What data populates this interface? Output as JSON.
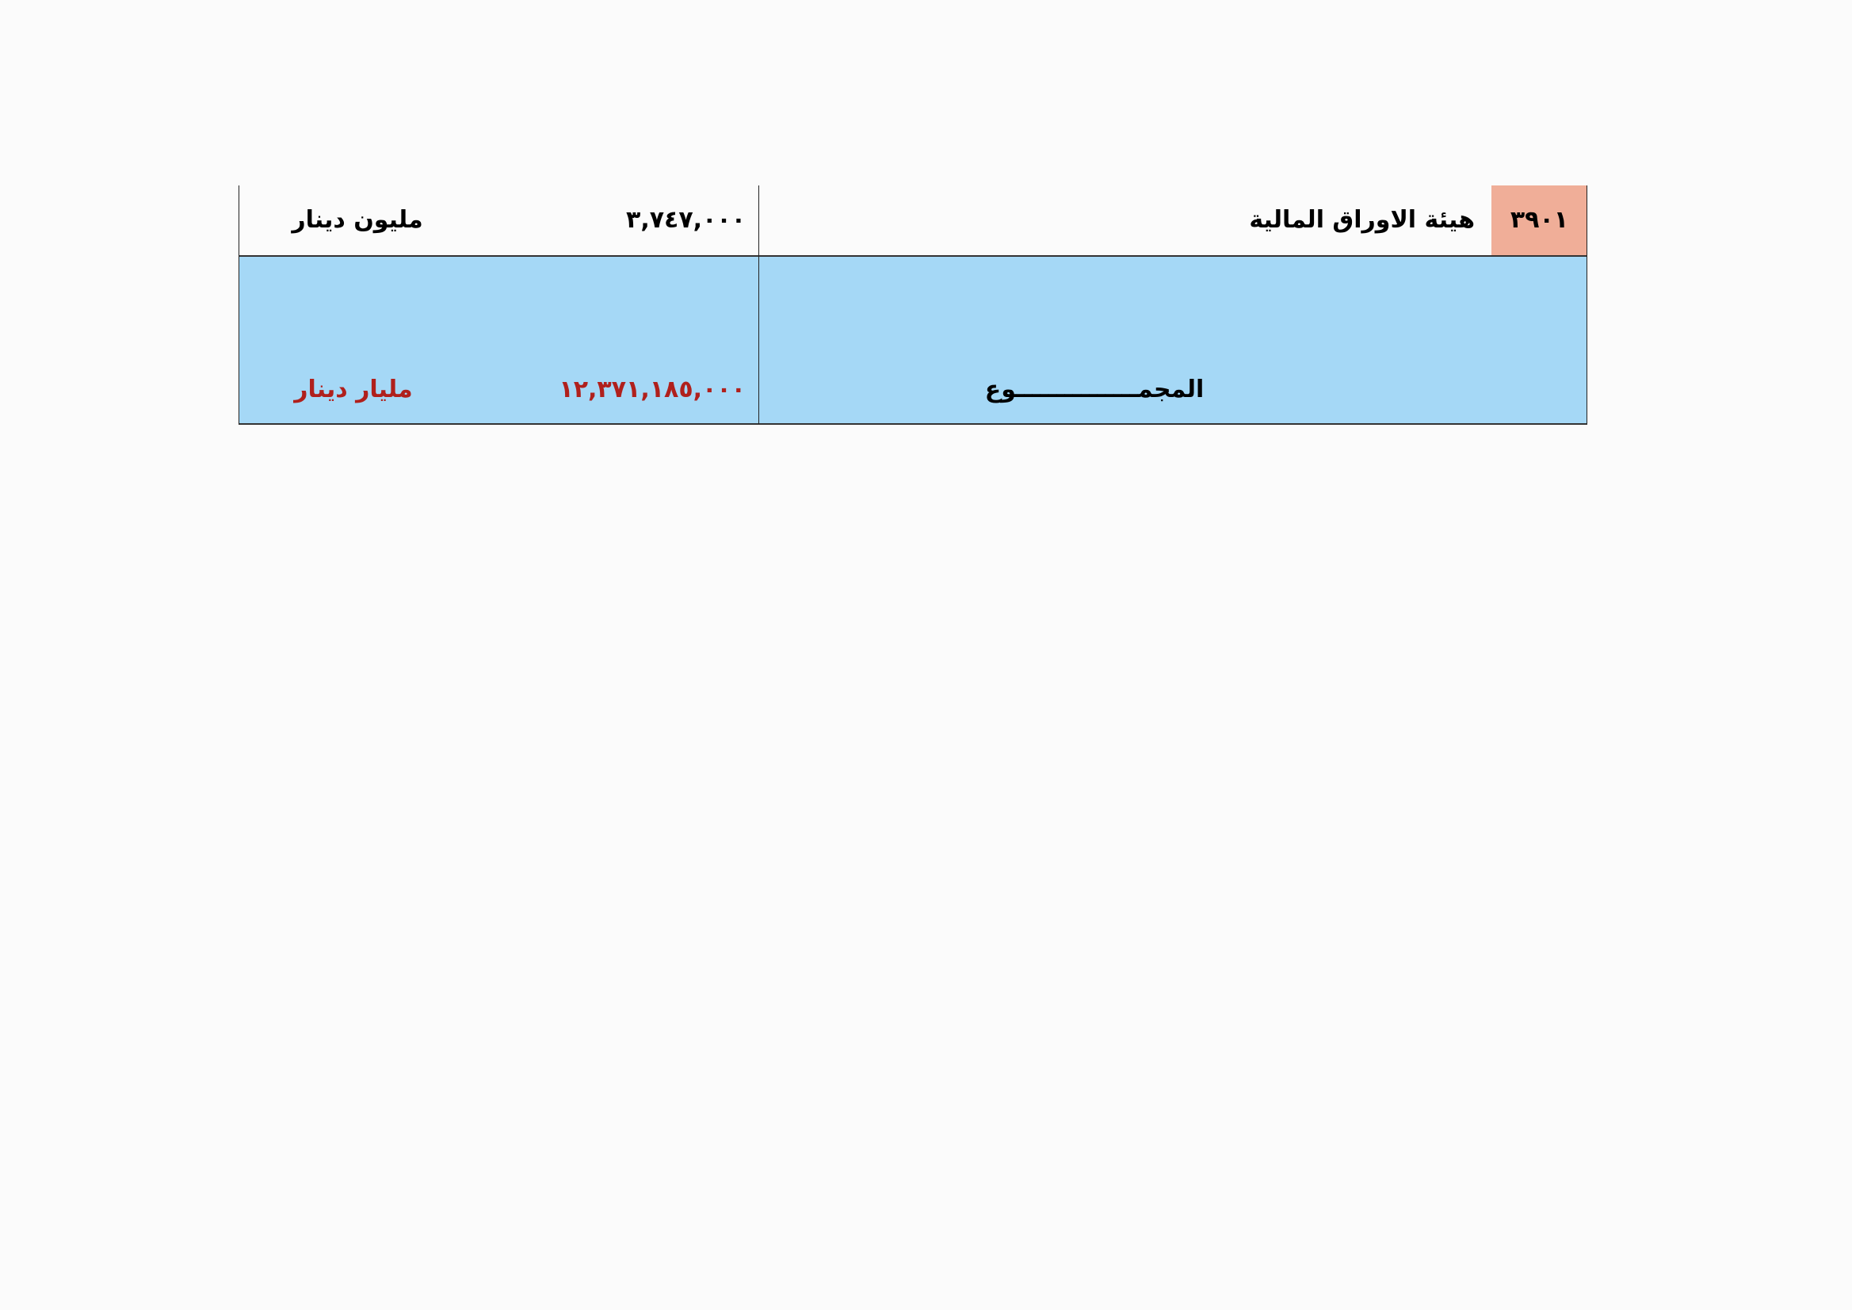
{
  "rows": [
    {
      "code": "٣٩٠١",
      "name": "هيئة الاوراق المالية",
      "amount": "٣,٧٤٧,٠٠٠",
      "unit": "مليون دينار"
    }
  ],
  "total": {
    "label": "المجمـــــــــــــــوع",
    "amount": "١٢,٣٧١,١٨٥,٠٠٠",
    "unit": "مليار دينار"
  },
  "colors": {
    "total_bg": "#a5d8f6",
    "code_bg": "#f0ae98",
    "total_text": "#b0201c"
  }
}
